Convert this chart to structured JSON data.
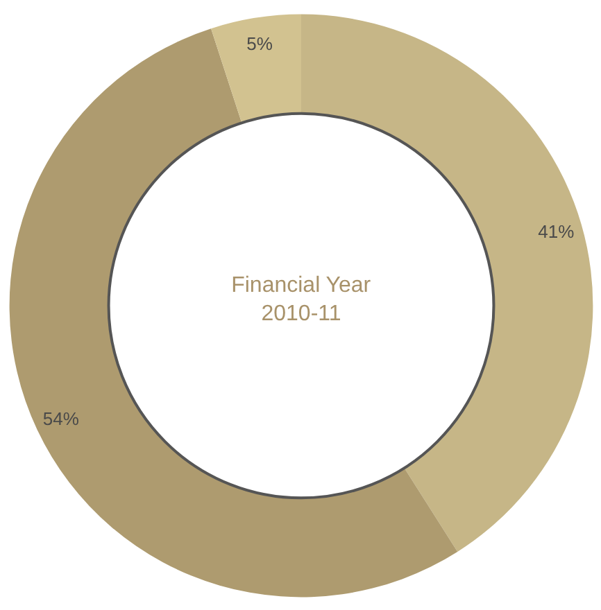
{
  "chart_data": {
    "type": "donut",
    "title": "Financial Year\n2010-11",
    "categories": [
      null,
      null,
      null
    ],
    "values": [
      41,
      54,
      5
    ],
    "colors": [
      "#c6b687",
      "#ae9b6f",
      "#d2c290"
    ],
    "value_labels": [
      "41%",
      "54%",
      "5%"
    ]
  }
}
